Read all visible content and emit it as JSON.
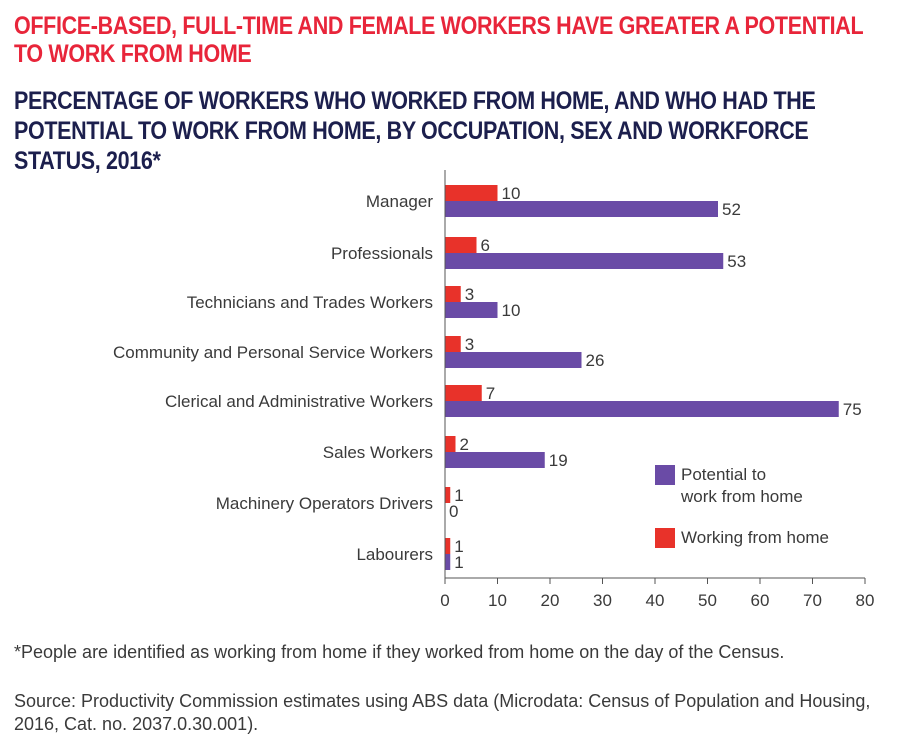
{
  "title": "OFFICE-BASED, FULL-TIME AND FEMALE WORKERS HAVE GREATER A POTENTIAL TO WORK FROM HOME",
  "subtitle": "PERCENTAGE OF WORKERS WHO WORKED FROM HOME, AND WHO HAD THE POTENTIAL TO WORK FROM HOME, BY OCCUPATION, SEX AND WORKFORCE STATUS, 2016*",
  "footnote": "*People are identified as working from home if they worked from home on the day of the Census.",
  "source": "Source: Productivity Commission estimates using ABS data (Microdata: Census of Population and Housing, 2016, Cat. no. 2037.0.30.001).",
  "colors": {
    "title": "#e8253a",
    "subtitle": "#1c1f4d",
    "working": "#e8322a",
    "potential": "#6a4ba6"
  },
  "chart_data": {
    "type": "bar",
    "orientation": "horizontal",
    "categories": [
      "Manager",
      "Professionals",
      "Technicians and Trades Workers",
      "Community and Personal Service Workers",
      "Clerical and Administrative Workers",
      "Sales Workers",
      "Machinery Operators Drivers",
      "Labourers"
    ],
    "series": [
      {
        "name": "Working from home",
        "color": "#e8322a",
        "values": [
          10,
          6,
          3,
          3,
          7,
          2,
          1,
          1
        ]
      },
      {
        "name": "Potential to work from home",
        "color": "#6a4ba6",
        "values": [
          52,
          53,
          10,
          26,
          75,
          19,
          0,
          1
        ]
      }
    ],
    "xlim": [
      0,
      80
    ],
    "xticks": [
      0,
      10,
      20,
      30,
      40,
      50,
      60,
      70,
      80
    ],
    "grid": false,
    "legend": {
      "position": "right",
      "items": [
        {
          "label_line1": "Potential to",
          "label_line2": "work from home",
          "color": "#6a4ba6"
        },
        {
          "label_line1": "Working from home",
          "label_line2": "",
          "color": "#e8322a"
        }
      ]
    }
  }
}
